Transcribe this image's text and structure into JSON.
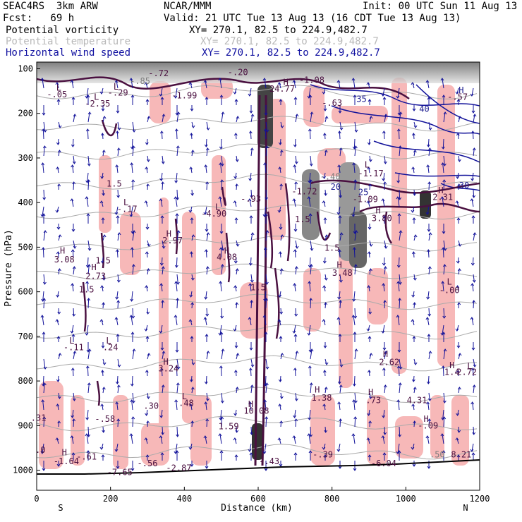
{
  "header": {
    "model": "SEAC4RS  3km ARW",
    "org": "NCAR/MMM",
    "init": "Init: 00 UTC Sun 11 Aug 13",
    "fcst": "Fcst:   69 h",
    "valid": "Valid: 21 UTC Tue 13 Aug 13 (16 CDT Tue 13 Aug 13)",
    "fields": [
      {
        "name": "Potential vorticity",
        "xy": "XY= 270.1, 82.5 to 224.9,482.7",
        "color": "#000000"
      },
      {
        "name": "Potential temperature",
        "xy": "XY= 270.1, 82.5 to 224.9,482.7",
        "color": "#b9b9b9"
      },
      {
        "name": "Horizontal wind speed",
        "xy": "XY= 270.1, 82.5 to 224.9,482.7",
        "color": "#1010a0"
      }
    ]
  },
  "colors": {
    "pink": "#f7b8b8",
    "pv_contour": "#4a1040",
    "wind": "#12129a",
    "theta": "#aaaaaa",
    "terrain": "#000000"
  },
  "chart_data": {
    "type": "cross-section",
    "xlabel": "Distance (km)",
    "ylabel": "Pressure (hPa)",
    "xlim": [
      0,
      1200
    ],
    "ylim": [
      1000,
      100
    ],
    "x_ticks": [
      "0",
      "200",
      "400",
      "600",
      "800",
      "1000",
      "1200"
    ],
    "y_ticks": [
      "100",
      "200",
      "300",
      "400",
      "500",
      "600",
      "700",
      "800",
      "900",
      "1000"
    ],
    "endpoints": {
      "left": "S",
      "right": "N"
    },
    "labels": [
      {
        "text": "L",
        "x": 60,
        "y": 143,
        "c": "pv"
      },
      {
        "text": "-.05",
        "x": 55,
        "y": 158,
        "c": "pv"
      },
      {
        "text": "-2.35",
        "x": 165,
        "y": 178,
        "c": "pv"
      },
      {
        "text": "L",
        "x": 162,
        "y": 163,
        "c": "pv"
      },
      {
        "text": "-.72",
        "x": 330,
        "y": 110,
        "c": "pv"
      },
      {
        "text": "-.85",
        "x": 280,
        "y": 128,
        "c": "grey"
      },
      {
        "text": "L",
        "x": 215,
        "y": 140,
        "c": "pv"
      },
      {
        "text": "-.29",
        "x": 220,
        "y": 154,
        "c": "pv"
      },
      {
        "text": "-1.99",
        "x": 400,
        "y": 160,
        "c": "pv"
      },
      {
        "text": "-.20",
        "x": 545,
        "y": 108,
        "c": "pv"
      },
      {
        "text": "-1.08",
        "x": 745,
        "y": 125,
        "c": "pv"
      },
      {
        "text": "H",
        "x": 675,
        "y": 130,
        "c": "pv"
      },
      {
        "text": "24.77",
        "x": 665,
        "y": 145,
        "c": "pv"
      },
      {
        "text": "-.63",
        "x": 800,
        "y": 177,
        "c": "pv"
      },
      {
        "text": "35",
        "x": 880,
        "y": 168,
        "c": "blue"
      },
      {
        "text": "40",
        "x": 1050,
        "y": 190,
        "c": "blue"
      },
      {
        "text": "H",
        "x": 1150,
        "y": 148,
        "c": "blue"
      },
      {
        "text": "-.57",
        "x": 1140,
        "y": 163,
        "c": "pv"
      },
      {
        "text": "L",
        "x": 895,
        "y": 315,
        "c": "pv"
      },
      {
        "text": "-1.17",
        "x": 905,
        "y": 335,
        "c": "pv"
      },
      {
        "text": "30",
        "x": 1158,
        "y": 362,
        "c": "blue"
      },
      {
        "text": "-.40",
        "x": 795,
        "y": 342,
        "c": "grey"
      },
      {
        "text": "1.5",
        "x": 210,
        "y": 358,
        "c": "pv"
      },
      {
        "text": "L",
        "x": 242,
        "y": 400,
        "c": "pv"
      },
      {
        "text": "-.17",
        "x": 245,
        "y": 415,
        "c": "pv"
      },
      {
        "text": "L",
        "x": 490,
        "y": 410,
        "c": "pv"
      },
      {
        "text": "-4.90",
        "x": 480,
        "y": 425,
        "c": "pv"
      },
      {
        "text": "-.93",
        "x": 580,
        "y": 392,
        "c": "pv"
      },
      {
        "text": "-1.72",
        "x": 725,
        "y": 375,
        "c": "pv"
      },
      {
        "text": "20",
        "x": 810,
        "y": 365,
        "c": "blue"
      },
      {
        "text": "25",
        "x": 885,
        "y": 377,
        "c": "blue"
      },
      {
        "text": "-1.09",
        "x": 890,
        "y": 393,
        "c": "pv"
      },
      {
        "text": "H",
        "x": 1095,
        "y": 373,
        "c": "pv"
      },
      {
        "text": "2.31",
        "x": 1100,
        "y": 388,
        "c": "pv"
      },
      {
        "text": "H",
        "x": 925,
        "y": 418,
        "c": "pv"
      },
      {
        "text": "3.80",
        "x": 935,
        "y": 435,
        "c": "pv"
      },
      {
        "text": "1.5",
        "x": 720,
        "y": 438,
        "c": "pv"
      },
      {
        "text": "H",
        "x": 358,
        "y": 470,
        "c": "pv"
      },
      {
        "text": "2.97",
        "x": 368,
        "y": 485,
        "c": "pv"
      },
      {
        "text": "1.5",
        "x": 800,
        "y": 502,
        "c": "pv"
      },
      {
        "text": "H",
        "x": 70,
        "y": 508,
        "c": "pv"
      },
      {
        "text": "3.08",
        "x": 75,
        "y": 528,
        "c": "pv"
      },
      {
        "text": "1.5",
        "x": 180,
        "y": 530,
        "c": "pv"
      },
      {
        "text": "H",
        "x": 515,
        "y": 508,
        "c": "pv"
      },
      {
        "text": "4.08",
        "x": 515,
        "y": 522,
        "c": "pv"
      },
      {
        "text": "H",
        "x": 820,
        "y": 540,
        "c": "pv"
      },
      {
        "text": "3.48",
        "x": 828,
        "y": 558,
        "c": "pv"
      },
      {
        "text": "H",
        "x": 155,
        "y": 545,
        "c": "pv"
      },
      {
        "text": "2.73",
        "x": 160,
        "y": 565,
        "c": "pv"
      },
      {
        "text": "1.5",
        "x": 135,
        "y": 595,
        "c": "pv"
      },
      {
        "text": "1.5",
        "x": 600,
        "y": 590,
        "c": "pv"
      },
      {
        "text": "L",
        "x": 1118,
        "y": 578,
        "c": "pv"
      },
      {
        "text": "-.00",
        "x": 1118,
        "y": 597,
        "c": "pv"
      },
      {
        "text": "L",
        "x": 95,
        "y": 710,
        "c": "pv"
      },
      {
        "text": "-.11",
        "x": 100,
        "y": 725,
        "c": "pv"
      },
      {
        "text": "L",
        "x": 195,
        "y": 710,
        "c": "pv"
      },
      {
        "text": ".24",
        "x": 200,
        "y": 725,
        "c": "pv"
      },
      {
        "text": "H",
        "x": 945,
        "y": 740,
        "c": "pv"
      },
      {
        "text": "2.62",
        "x": 955,
        "y": 758,
        "c": "pv"
      },
      {
        "text": "H",
        "x": 350,
        "y": 757,
        "c": "pv"
      },
      {
        "text": "3.24",
        "x": 357,
        "y": 772,
        "c": "pv"
      },
      {
        "text": "H",
        "x": 1125,
        "y": 765,
        "c": "pv"
      },
      {
        "text": "1.4",
        "x": 1125,
        "y": 780,
        "c": "pv"
      },
      {
        "text": "L",
        "x": 1173,
        "y": 767,
        "c": "pv"
      },
      {
        "text": "2.72",
        "x": 1165,
        "y": 780,
        "c": "pv"
      },
      {
        "text": "H",
        "x": 760,
        "y": 820,
        "c": "pv"
      },
      {
        "text": "1.38",
        "x": 772,
        "y": 838,
        "c": "pv"
      },
      {
        "text": "H",
        "x": 905,
        "y": 825,
        "c": "pv"
      },
      {
        "text": ".73",
        "x": 912,
        "y": 843,
        "c": "pv"
      },
      {
        "text": "4.31",
        "x": 1030,
        "y": 843,
        "c": "pv"
      },
      {
        "text": "L",
        "x": 400,
        "y": 835,
        "c": "pv"
      },
      {
        "text": ".48",
        "x": 405,
        "y": 850,
        "c": "pv"
      },
      {
        "text": ".30",
        "x": 310,
        "y": 856,
        "c": "pv"
      },
      {
        "text": "H",
        "x": 580,
        "y": 852,
        "c": "pv"
      },
      {
        "text": "10.08",
        "x": 595,
        "y": 867,
        "c": "pv"
      },
      {
        "text": "-.58",
        "x": 185,
        "y": 885,
        "c": "pv"
      },
      {
        "text": ".31",
        "x": 5,
        "y": 883,
        "c": "pv"
      },
      {
        "text": "1.59",
        "x": 520,
        "y": 902,
        "c": "pv"
      },
      {
        "text": "H",
        "x": 1055,
        "y": 885,
        "c": "pv"
      },
      {
        "text": "-.09",
        "x": 1060,
        "y": 900,
        "c": "pv"
      },
      {
        "text": ".0",
        "x": 10,
        "y": 955,
        "c": "pv"
      },
      {
        "text": "H",
        "x": 75,
        "y": 960,
        "c": "pv"
      },
      {
        "text": "-1.64",
        "x": 80,
        "y": 980,
        "c": "pv"
      },
      {
        "text": "-.61",
        "x": 135,
        "y": 970,
        "c": "pv"
      },
      {
        "text": "-.56",
        "x": 300,
        "y": 985,
        "c": "pv"
      },
      {
        "text": "-2.87",
        "x": 385,
        "y": 995,
        "c": "pv"
      },
      {
        "text": "-7.65",
        "x": 225,
        "y": 1005,
        "c": "pv"
      },
      {
        "text": "-.39",
        "x": 775,
        "y": 965,
        "c": "pv"
      },
      {
        "text": "-6.04",
        "x": 940,
        "y": 985,
        "c": "pv"
      },
      {
        "text": ".50",
        "x": 1085,
        "y": 965,
        "c": "grey"
      },
      {
        "text": "8.21",
        "x": 1150,
        "y": 965,
        "c": "pv"
      },
      {
        "text": "-.43",
        "x": 630,
        "y": 980,
        "c": "pv"
      }
    ]
  }
}
